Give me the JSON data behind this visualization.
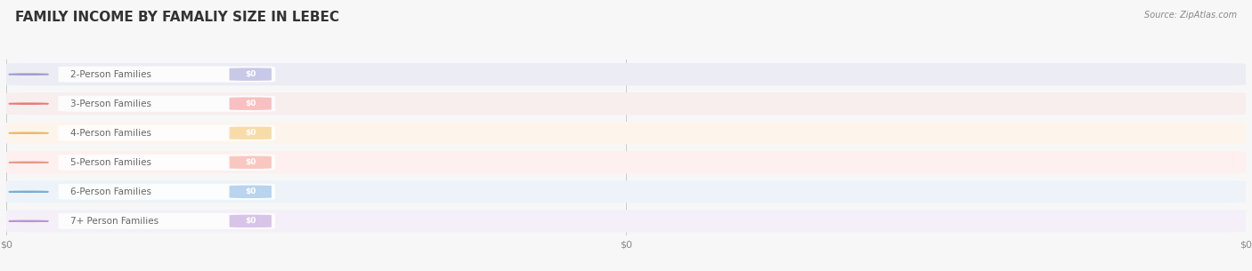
{
  "title": "FAMILY INCOME BY FAMALIY SIZE IN LEBEC",
  "source": "Source: ZipAtlas.com",
  "categories": [
    "2-Person Families",
    "3-Person Families",
    "4-Person Families",
    "5-Person Families",
    "6-Person Families",
    "7+ Person Families"
  ],
  "values": [
    0,
    0,
    0,
    0,
    0,
    0
  ],
  "dot_colors": [
    "#9b9bca",
    "#e87878",
    "#e8b86a",
    "#e89888",
    "#7aaed4",
    "#b898cc"
  ],
  "badge_colors": [
    "#c8c8e8",
    "#f8c0c0",
    "#f8dca8",
    "#f8c8c0",
    "#b8d4ee",
    "#d8c4e8"
  ],
  "row_bg_colors": [
    "#ececf5",
    "#f8eeee",
    "#fdf5ec",
    "#fdf0ee",
    "#edf3f9",
    "#f4eff8"
  ],
  "pill_bg_color": "#f8f8fc",
  "background_color": "#f7f7f7",
  "title_fontsize": 11,
  "source_fontsize": 7,
  "xtick_labels": [
    "$0",
    "$0",
    "$0"
  ],
  "grid_color": "#cccccc",
  "label_color": "#666666"
}
